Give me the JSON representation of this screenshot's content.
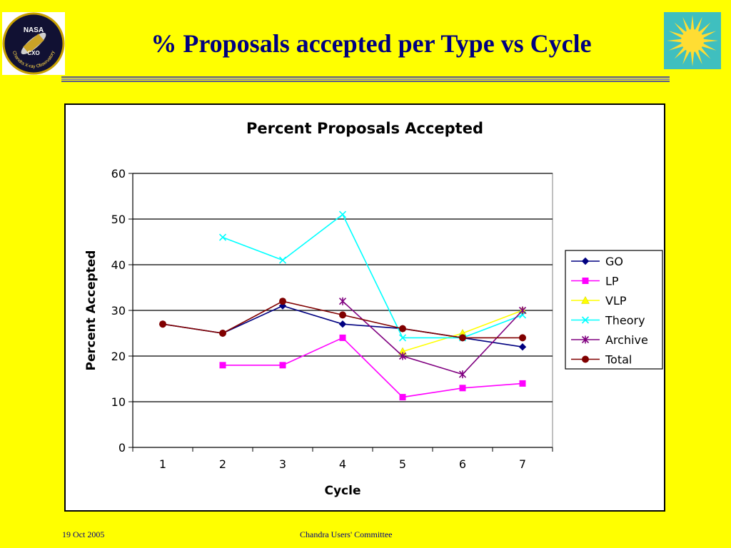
{
  "slide": {
    "title": "% Proposals accepted per Type vs Cycle",
    "footer_date": "19 Oct 2005",
    "footer_center": "Chandra Users' Committee",
    "logo_left_text": [
      "NASA",
      "CXO",
      "Chandra X-ray Observatory"
    ],
    "colors": {
      "background": "#ffff00",
      "title": "#000080",
      "rule": "#5a5a8c"
    }
  },
  "chart_data": {
    "type": "line",
    "title": "Percent Proposals Accepted",
    "xlabel": "Cycle",
    "ylabel": "Percent Accepted",
    "categories": [
      "1",
      "2",
      "3",
      "4",
      "5",
      "6",
      "7"
    ],
    "ylim": [
      0,
      60
    ],
    "yticks": [
      0,
      10,
      20,
      30,
      40,
      50,
      60
    ],
    "grid": "horizontal",
    "legend_position": "right",
    "series": [
      {
        "name": "GO",
        "color": "#000080",
        "marker": "diamond",
        "values": [
          27,
          25,
          31,
          27,
          26,
          24,
          22
        ]
      },
      {
        "name": "LP",
        "color": "#ff00ff",
        "marker": "square",
        "values": [
          null,
          18,
          18,
          24,
          11,
          13,
          14
        ]
      },
      {
        "name": "VLP",
        "color": "#ffff00",
        "marker": "triangle",
        "values": [
          null,
          null,
          null,
          null,
          21,
          25,
          30
        ]
      },
      {
        "name": "Theory",
        "color": "#00ffff",
        "marker": "x",
        "values": [
          null,
          46,
          41,
          51,
          24,
          24,
          29
        ]
      },
      {
        "name": "Archive",
        "color": "#800080",
        "marker": "star",
        "values": [
          null,
          null,
          null,
          32,
          20,
          16,
          30
        ]
      },
      {
        "name": "Total",
        "color": "#800000",
        "marker": "circle",
        "values": [
          27,
          25,
          32,
          29,
          26,
          24,
          24
        ]
      }
    ]
  }
}
